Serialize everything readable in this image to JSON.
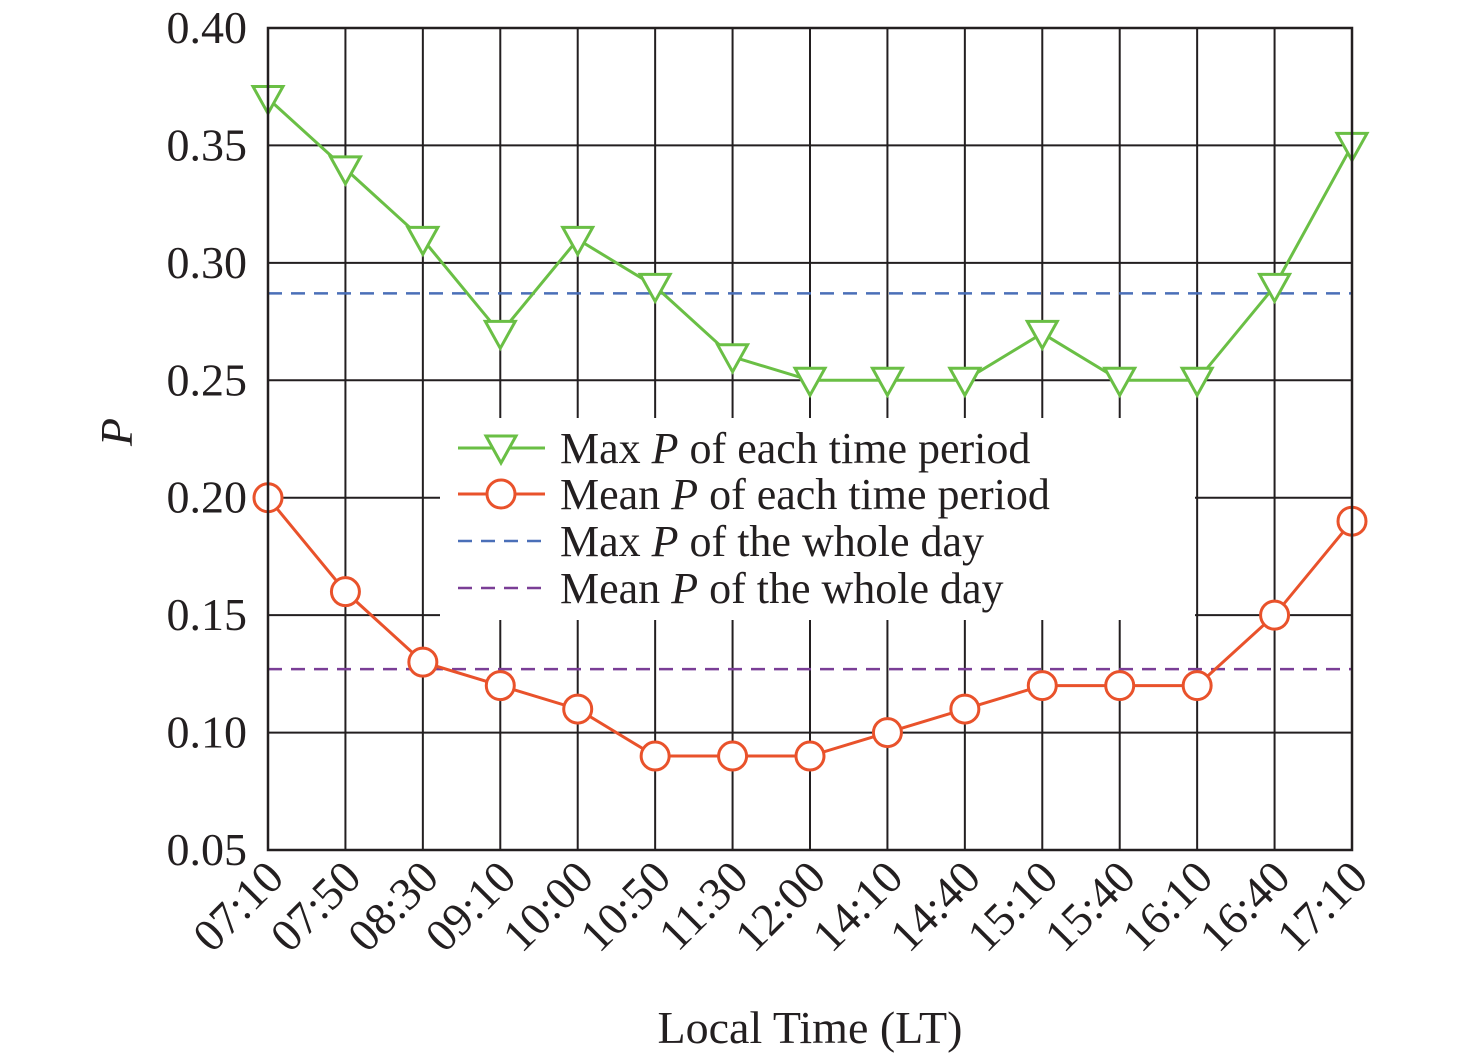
{
  "chart_data": {
    "type": "line",
    "xlabel": "Local Time (LT)",
    "ylabel": "P",
    "categories": [
      "07:10",
      "07:50",
      "08:30",
      "09:10",
      "10:00",
      "10:50",
      "11:30",
      "12:00",
      "14:10",
      "14:40",
      "15:10",
      "15:40",
      "16:10",
      "16:40",
      "17:10"
    ],
    "ylim": [
      0.05,
      0.4
    ],
    "yticks": [
      "0.05",
      "0.10",
      "0.15",
      "0.20",
      "0.25",
      "0.30",
      "0.35",
      "0.40"
    ],
    "grid": true,
    "legend_position": "center",
    "series": [
      {
        "name_parts": [
          "Max ",
          "P",
          " of each time period"
        ],
        "color": "#6abf45",
        "marker": "triangle-down",
        "values": [
          0.37,
          0.34,
          0.31,
          0.27,
          0.31,
          0.29,
          0.26,
          0.25,
          0.25,
          0.25,
          0.27,
          0.25,
          0.25,
          0.29,
          0.35
        ]
      },
      {
        "name_parts": [
          "Mean ",
          "P",
          " of each time period"
        ],
        "color": "#e9522b",
        "marker": "circle",
        "values": [
          0.2,
          0.16,
          0.13,
          0.12,
          0.11,
          0.09,
          0.09,
          0.09,
          0.1,
          0.11,
          0.12,
          0.12,
          0.12,
          0.15,
          0.19
        ]
      }
    ],
    "reference_lines": [
      {
        "name_parts": [
          "Max ",
          "P",
          " of the whole day"
        ],
        "color": "#4a6fb8",
        "value": 0.287
      },
      {
        "name_parts": [
          "Mean ",
          "P",
          " of the whole day"
        ],
        "color": "#7a3e96",
        "value": 0.127
      }
    ]
  }
}
